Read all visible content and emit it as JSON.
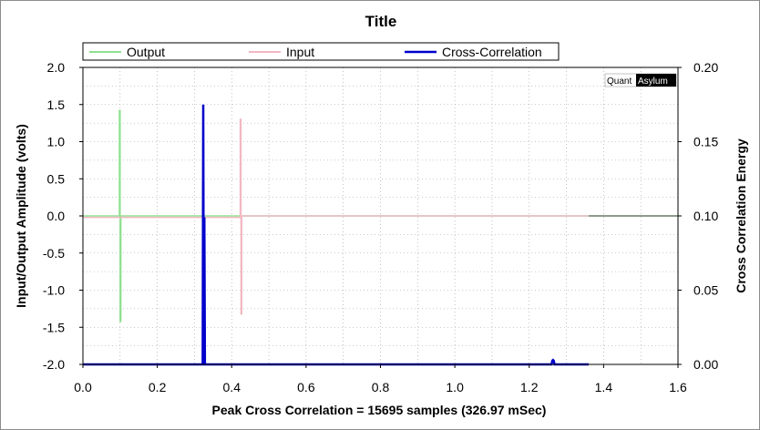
{
  "chart_data": {
    "type": "line",
    "title": "Title",
    "xlabel": "Peak Cross Correlation = 15695 samples  (326.97 mSec)",
    "ylabel": "Input/Output Amplitude (volts)",
    "y2label": "Cross Correlation Energy",
    "xlim": [
      0.0,
      1.6
    ],
    "ylim": [
      -2.0,
      2.0
    ],
    "y2lim": [
      0.0,
      0.2
    ],
    "x_ticks": [
      "0.0",
      "0.2",
      "0.4",
      "0.6",
      "0.8",
      "1.0",
      "1.2",
      "1.4",
      "1.6"
    ],
    "y_ticks": [
      "2.0",
      "1.5",
      "1.0",
      "0.5",
      "0.0",
      "-0.5",
      "-1.0",
      "-1.5",
      "-2.0"
    ],
    "y2_ticks": [
      "0.20",
      "0.15",
      "0.10",
      "0.05",
      "0.00"
    ],
    "grid": true,
    "legend_position": "top",
    "watermark": {
      "left": "Quant",
      "right": "Asylum"
    },
    "series": [
      {
        "name": "Output",
        "color": "#90e090",
        "axis": "left",
        "x": [
          0.0,
          0.098,
          0.098,
          0.1,
          0.1,
          0.102,
          0.102,
          1.36
        ],
        "y": [
          0.0,
          0.0,
          1.42,
          1.42,
          -1.42,
          -1.42,
          0.0,
          0.0
        ]
      },
      {
        "name": "Input",
        "color": "#f2b8c2",
        "axis": "left",
        "x": [
          0.0,
          0.423,
          0.423,
          0.425,
          0.425,
          0.427,
          0.427,
          1.36
        ],
        "y": [
          -0.02,
          -0.02,
          1.3,
          1.3,
          -1.32,
          -1.32,
          0.0,
          0.0
        ]
      },
      {
        "name": "Cross-Correlation",
        "color": "#0000cc",
        "axis": "right",
        "x": [
          0.0,
          0.322,
          0.3235,
          0.325,
          0.3265,
          0.328,
          1.26,
          1.262,
          1.264,
          1.266,
          1.268,
          1.36
        ],
        "y": [
          0.0,
          0.0,
          0.175,
          0.0,
          0.099,
          0.0,
          0.0,
          0.0025,
          0.003,
          0.0025,
          0.0,
          0.0
        ]
      }
    ]
  }
}
